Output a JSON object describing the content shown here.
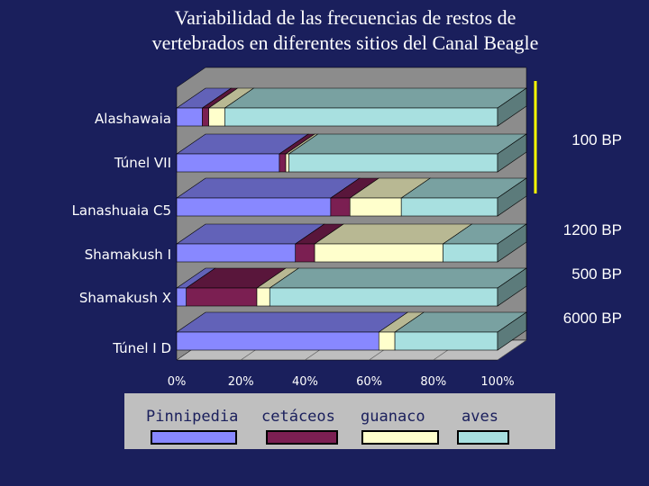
{
  "title": [
    "Variabilidad de las frecuencias de restos de",
    "vertebrados en diferentes sitios del Canal Beagle"
  ],
  "colors": {
    "background": "#1a1f5c",
    "pinnipedia": "#8888ff",
    "cetaceos": "#7b1f52",
    "guanaco": "#ffffcc",
    "aves": "#a8e0e0",
    "wall": "#8c8c8c",
    "floor": "#bfbfbf",
    "legend_bg": "#bfbfbf",
    "marker": "#ffff00"
  },
  "annotations": [
    {
      "text": "100 BP",
      "row": 1
    },
    {
      "text": "1200 BP",
      "row": 3
    },
    {
      "text": "500 BP",
      "row": 4
    },
    {
      "text": "6000 BP",
      "row": 5
    }
  ],
  "chart_data": {
    "type": "bar",
    "subtype": "3d-stacked-100-horizontal",
    "categories": [
      "Alashawaia",
      "Túnel VII",
      "Lanashuaia C5",
      "Shamakush I",
      "Shamakush X",
      "Túnel I D"
    ],
    "series": [
      {
        "name": "Pinnipedia",
        "values": [
          8,
          32,
          48,
          37,
          3,
          63
        ]
      },
      {
        "name": "cetáceos",
        "values": [
          2,
          2,
          6,
          6,
          22,
          0
        ]
      },
      {
        "name": "guanaco",
        "values": [
          5,
          1,
          16,
          40,
          4,
          5
        ]
      },
      {
        "name": "aves",
        "values": [
          85,
          65,
          30,
          17,
          71,
          32
        ]
      }
    ],
    "xlim": [
      0,
      100
    ],
    "xticks": [
      "0%",
      "20%",
      "40%",
      "60%",
      "80%",
      "100%"
    ],
    "xlabel": "",
    "ylabel": "",
    "legend_position": "bottom",
    "grid": true
  }
}
